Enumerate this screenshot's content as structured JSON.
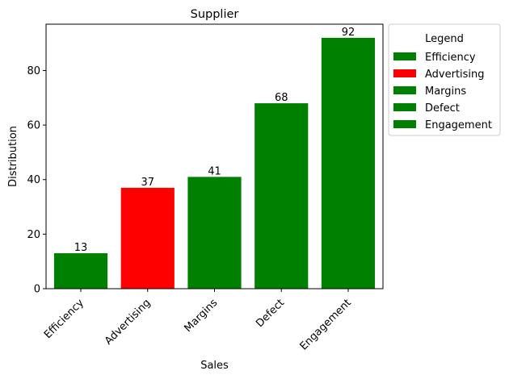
{
  "chart_data": {
    "type": "bar",
    "title": "Supplier",
    "xlabel": "Sales",
    "ylabel": "Distribution",
    "categories": [
      "Efficiency",
      "Advertising",
      "Margins",
      "Defect",
      "Engagement"
    ],
    "values": [
      13,
      37,
      41,
      68,
      92
    ],
    "colors": [
      "#008000",
      "#ff0000",
      "#008000",
      "#008000",
      "#008000"
    ],
    "ylim": [
      0,
      97
    ],
    "yticks": [
      0,
      20,
      40,
      60,
      80
    ],
    "grid": false,
    "data_labels": true,
    "legend": {
      "title": "Legend",
      "placement": "outside-top-right",
      "entries": [
        "Efficiency",
        "Advertising",
        "Margins",
        "Defect",
        "Engagement"
      ]
    }
  }
}
